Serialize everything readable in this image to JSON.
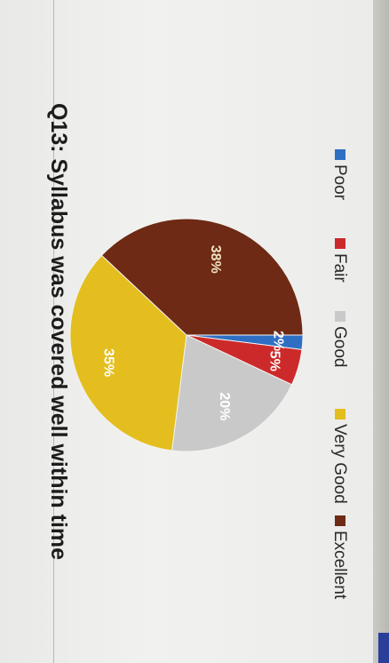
{
  "chart_data": {
    "type": "pie",
    "title": "Q13: Syllabus was covered well within time",
    "legend_position": "bottom",
    "categories": [
      "Poor",
      "Fair",
      "Good",
      "Very Good",
      "Excellent"
    ],
    "values": [
      2,
      5,
      20,
      35,
      38
    ],
    "labels": [
      "2%",
      "5%",
      "20%",
      "35%",
      "38%"
    ],
    "colors": [
      "#2e6fc4",
      "#cc2a2a",
      "#c9c9c9",
      "#e3be1e",
      "#6e2a14"
    ],
    "label_colors": [
      "#ffffff",
      "#ffffff",
      "#ffffff",
      "#ffffff",
      "#f0e0c0"
    ]
  }
}
